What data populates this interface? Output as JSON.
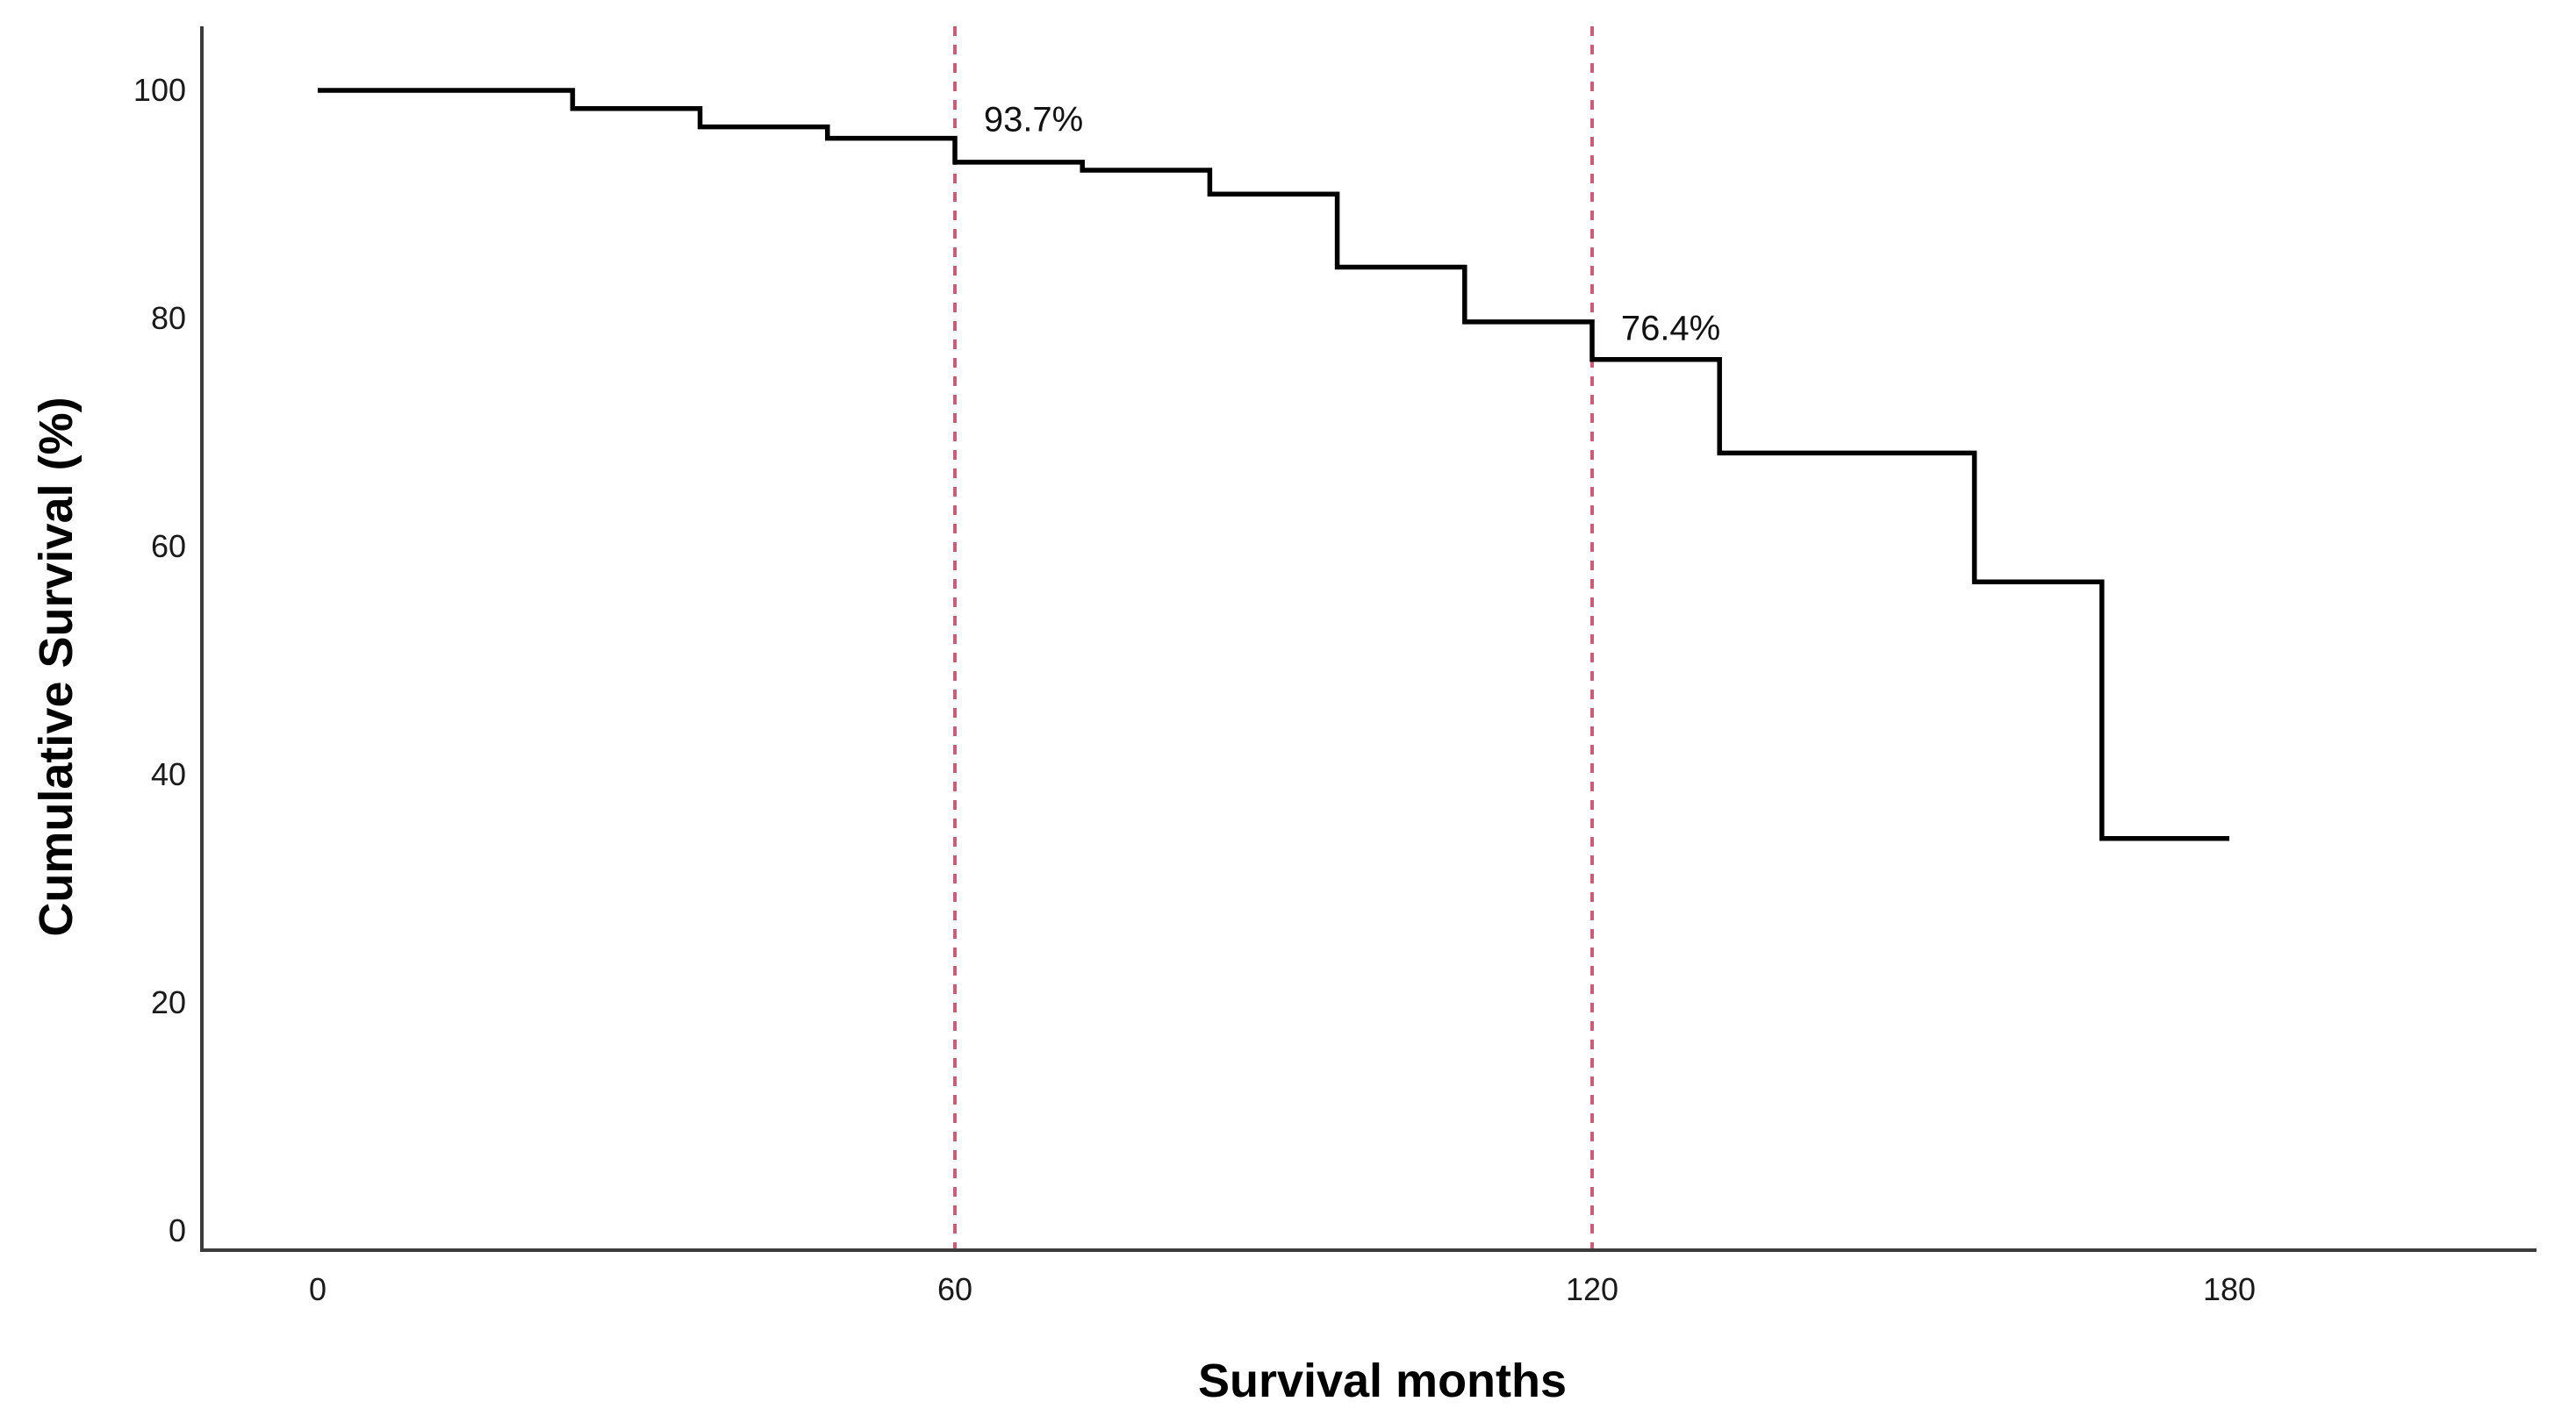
{
  "chart_data": {
    "type": "line",
    "subtype": "kaplan-meier-step",
    "title": "",
    "xlabel": "Survival months",
    "ylabel": "Cumulative Survival (%)",
    "xlim": [
      0,
      209
    ],
    "ylim": [
      0,
      101.7
    ],
    "grid": false,
    "legend": "none",
    "x_ticks": [
      {
        "value": 0,
        "label": "0"
      },
      {
        "value": 60,
        "label": "60"
      },
      {
        "value": 120,
        "label": "120"
      },
      {
        "value": 180,
        "label": "180"
      }
    ],
    "y_ticks": [
      {
        "value": 100,
        "label": "100"
      },
      {
        "value": 80,
        "label": "80"
      },
      {
        "value": 60,
        "label": "60"
      },
      {
        "value": 40,
        "label": "40"
      },
      {
        "value": 20,
        "label": "20"
      },
      {
        "value": 0,
        "label": "0"
      }
    ],
    "series": [
      {
        "name": "Cumulative survival",
        "steps": [
          {
            "months": 0,
            "percent": 100
          },
          {
            "months": 24,
            "percent": 98.4
          },
          {
            "months": 36,
            "percent": 96.8
          },
          {
            "months": 48,
            "percent": 95.8
          },
          {
            "months": 60,
            "percent": 93.7
          },
          {
            "months": 72,
            "percent": 93.0
          },
          {
            "months": 84,
            "percent": 90.9
          },
          {
            "months": 96,
            "percent": 84.5
          },
          {
            "months": 108,
            "percent": 79.7
          },
          {
            "months": 120,
            "percent": 76.4
          },
          {
            "months": 132,
            "percent": 68.2
          },
          {
            "months": 156,
            "percent": 56.9
          },
          {
            "months": 168,
            "percent": 34.4
          }
        ],
        "curve_end_month": 180
      }
    ],
    "reference_lines": [
      {
        "months": 60,
        "style": "dashed"
      },
      {
        "months": 120,
        "style": "dashed"
      }
    ],
    "annotations": [
      {
        "text": "93.7%",
        "months": 67.4,
        "percent": 97.5
      },
      {
        "text": "76.4%",
        "months": 127.4,
        "percent": 79.2
      }
    ],
    "colors": {
      "curve": "#000000",
      "axis": "#3c3c3c",
      "reference_line": "#c4607a",
      "text": "#1a1a1a"
    }
  }
}
